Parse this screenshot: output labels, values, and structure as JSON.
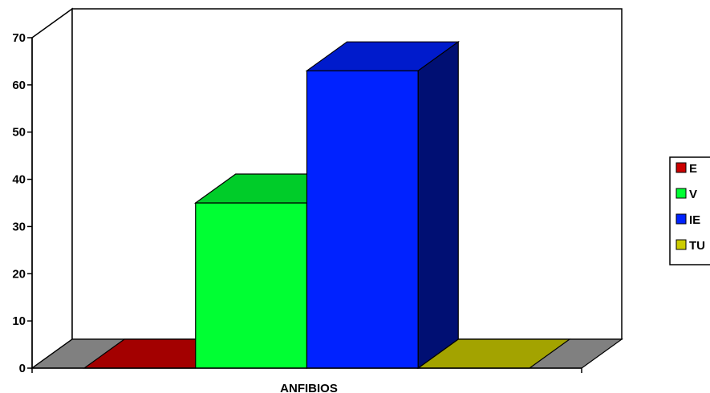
{
  "chart_data": {
    "type": "bar",
    "view": "3d",
    "categories": [
      "ANFIBIOS"
    ],
    "xlabel": "ANFIBIOS",
    "ylim": [
      0,
      70
    ],
    "yticks": [
      "0",
      "10",
      "20",
      "30",
      "40",
      "50",
      "60",
      "70"
    ],
    "series": [
      {
        "name": "E",
        "values": [
          0
        ],
        "color": "#cc0000"
      },
      {
        "name": "V",
        "values": [
          35
        ],
        "color": "#00ff33"
      },
      {
        "name": "IE",
        "values": [
          63
        ],
        "color": "#0022ff"
      },
      {
        "name": "TU",
        "values": [
          0
        ],
        "color": "#cccc00"
      }
    ],
    "legend": "right",
    "grid": false,
    "colors": {
      "wall": "#ffffff",
      "floor": "#808080",
      "outline": "#000000"
    }
  }
}
